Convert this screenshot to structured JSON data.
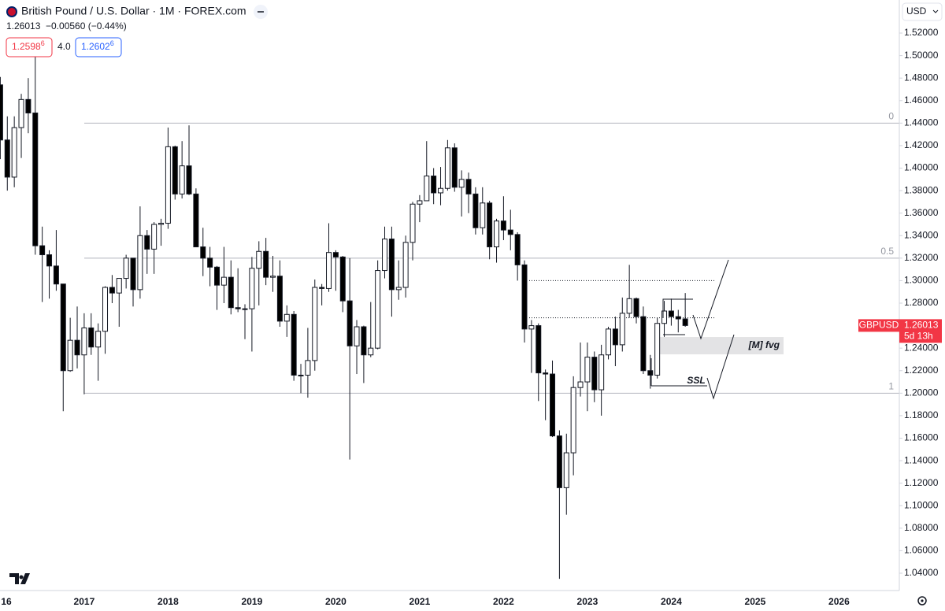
{
  "header": {
    "title": "British Pound / U.S. Dollar · 1M · FOREX.com",
    "quote": "1.26013",
    "change": "−0.00560 (−0.44%)",
    "bid": "1.2598",
    "bid_pip": "6",
    "spread": "4.0",
    "ask": "1.2602",
    "ask_pip": "6"
  },
  "currency": "USD",
  "chart_data": {
    "type": "candlestick",
    "categories": [
      "16",
      null,
      null,
      null,
      null,
      null,
      null,
      null,
      null,
      null,
      null,
      null,
      "2017",
      null,
      null,
      null,
      null,
      null,
      null,
      null,
      null,
      null,
      null,
      null,
      "2018",
      null,
      null,
      null,
      null,
      null,
      null,
      null,
      null,
      null,
      null,
      null,
      "2019",
      null,
      null,
      null,
      null,
      null,
      null,
      null,
      null,
      null,
      null,
      null,
      "2020",
      null,
      null,
      null,
      null,
      null,
      null,
      null,
      null,
      null,
      null,
      null,
      "2021",
      null,
      null,
      null,
      null,
      null,
      null,
      null,
      null,
      null,
      null,
      null,
      "2022",
      null,
      null,
      null,
      null,
      null,
      null,
      null,
      null,
      null,
      null,
      null,
      "2023",
      null,
      null,
      null,
      null,
      null,
      null,
      null,
      null,
      null,
      null,
      null,
      "2024",
      null,
      null,
      null,
      null,
      null,
      null,
      null,
      null,
      null,
      null,
      null,
      "2025",
      null,
      null,
      null,
      null,
      null,
      null,
      null,
      null,
      null,
      null,
      null,
      "2026",
      null,
      null,
      null,
      null,
      null,
      null,
      null,
      null
    ],
    "open": [
      1.474,
      1.425,
      1.392,
      1.436,
      1.461,
      1.449,
      1.331,
      1.323,
      1.313,
      1.297,
      1.22,
      1.247,
      1.234,
      1.258,
      1.241,
      1.255,
      1.294,
      1.289,
      1.302,
      1.32,
      1.292,
      1.34,
      1.328,
      1.35,
      1.351,
      1.419,
      1.377,
      1.402,
      1.377,
      1.33,
      1.32,
      1.312,
      1.296,
      1.303,
      1.276,
      1.275,
      1.275,
      1.311,
      1.326,
      1.303,
      1.304,
      1.264,
      1.27,
      1.216,
      1.216,
      1.229,
      1.294,
      1.293,
      1.325,
      1.321,
      1.282,
      1.242,
      1.259,
      1.234,
      1.24,
      1.309,
      1.337,
      1.292,
      1.294,
      1.334,
      1.368,
      1.371,
      1.393,
      1.378,
      1.382,
      1.418,
      1.383,
      1.39,
      1.377,
      1.347,
      1.369,
      1.33,
      1.353,
      1.345,
      1.341,
      1.314,
      1.257,
      1.26,
      1.218,
      1.217,
      1.162,
      1.116,
      1.147,
      1.205,
      1.21,
      1.232,
      1.203,
      1.234,
      1.257,
      1.243,
      1.271,
      1.284,
      1.268,
      1.22,
      1.216,
      1.262,
      1.273,
      1.268,
      1.266,
      null,
      null,
      null,
      null,
      null,
      null,
      null,
      null,
      null,
      null,
      null,
      null,
      null,
      null,
      null,
      null,
      null,
      null,
      null,
      null,
      null,
      null,
      null,
      null,
      null,
      null,
      null,
      null,
      null,
      null
    ],
    "high": [
      1.481,
      1.446,
      1.446,
      1.466,
      1.48,
      1.502,
      1.348,
      1.327,
      1.345,
      1.297,
      1.267,
      1.277,
      1.271,
      1.271,
      1.262,
      1.295,
      1.305,
      1.301,
      1.323,
      1.32,
      1.366,
      1.345,
      1.352,
      1.355,
      1.436,
      1.42,
      1.424,
      1.438,
      1.382,
      1.347,
      1.33,
      1.313,
      1.33,
      1.318,
      1.311,
      1.279,
      1.321,
      1.335,
      1.338,
      1.322,
      1.318,
      1.278,
      1.273,
      1.226,
      1.258,
      1.301,
      1.297,
      1.351,
      1.327,
      1.322,
      1.32,
      1.265,
      1.26,
      1.281,
      1.318,
      1.348,
      1.348,
      1.318,
      1.34,
      1.37,
      1.376,
      1.424,
      1.4,
      1.401,
      1.425,
      1.422,
      1.398,
      1.396,
      1.383,
      1.383,
      1.371,
      1.355,
      1.375,
      1.363,
      1.343,
      1.318,
      1.265,
      1.262,
      1.221,
      1.229,
      1.167,
      1.164,
      1.215,
      1.245,
      1.245,
      1.237,
      1.243,
      1.259,
      1.268,
      1.285,
      1.314,
      1.285,
      1.277,
      1.234,
      1.267,
      1.282,
      1.284,
      1.274,
      1.289,
      null,
      null,
      null,
      null,
      null,
      null,
      null,
      null,
      null,
      null,
      null,
      null,
      null,
      null,
      null,
      null,
      null,
      null,
      null,
      null,
      null,
      null,
      null,
      null,
      null,
      null,
      null,
      null,
      null,
      null
    ],
    "low": [
      1.408,
      1.38,
      1.383,
      1.409,
      1.431,
      1.323,
      1.281,
      1.284,
      1.291,
      1.184,
      1.219,
      1.222,
      1.199,
      1.234,
      1.211,
      1.235,
      1.28,
      1.259,
      1.293,
      1.277,
      1.284,
      1.306,
      1.306,
      1.331,
      1.346,
      1.372,
      1.373,
      1.376,
      1.33,
      1.304,
      1.295,
      1.274,
      1.28,
      1.27,
      1.272,
      1.248,
      1.237,
      1.278,
      1.296,
      1.29,
      1.259,
      1.25,
      1.211,
      1.2,
      1.196,
      1.22,
      1.278,
      1.29,
      1.291,
      1.272,
      1.141,
      1.217,
      1.209,
      1.232,
      1.239,
      1.302,
      1.268,
      1.283,
      1.285,
      1.318,
      1.352,
      1.371,
      1.368,
      1.367,
      1.38,
      1.379,
      1.357,
      1.36,
      1.341,
      1.341,
      1.319,
      1.316,
      1.336,
      1.327,
      1.3,
      1.245,
      1.218,
      1.193,
      1.176,
      1.161,
      1.035,
      1.092,
      1.127,
      1.197,
      1.184,
      1.192,
      1.18,
      1.23,
      1.224,
      1.237,
      1.267,
      1.262,
      1.217,
      1.204,
      1.213,
      1.25,
      1.26,
      1.254,
      1.259,
      null,
      null,
      null,
      null,
      null,
      null,
      null,
      null,
      null,
      null,
      null,
      null,
      null,
      null,
      null,
      null,
      null,
      null,
      null,
      null,
      null,
      null,
      null,
      null,
      null,
      null,
      null,
      null,
      null,
      null
    ],
    "close": [
      1.425,
      1.392,
      1.436,
      1.461,
      1.449,
      1.331,
      1.323,
      1.313,
      1.297,
      1.22,
      1.247,
      1.234,
      1.258,
      1.241,
      1.255,
      1.294,
      1.289,
      1.302,
      1.32,
      1.292,
      1.34,
      1.328,
      1.35,
      1.351,
      1.419,
      1.377,
      1.402,
      1.377,
      1.33,
      1.32,
      1.312,
      1.296,
      1.303,
      1.276,
      1.275,
      1.275,
      1.311,
      1.326,
      1.303,
      1.304,
      1.264,
      1.27,
      1.216,
      1.216,
      1.229,
      1.294,
      1.293,
      1.325,
      1.321,
      1.282,
      1.242,
      1.259,
      1.234,
      1.24,
      1.309,
      1.337,
      1.292,
      1.294,
      1.334,
      1.368,
      1.371,
      1.393,
      1.378,
      1.382,
      1.418,
      1.383,
      1.39,
      1.377,
      1.347,
      1.369,
      1.33,
      1.353,
      1.345,
      1.341,
      1.314,
      1.257,
      1.26,
      1.218,
      1.217,
      1.162,
      1.116,
      1.147,
      1.205,
      1.21,
      1.232,
      1.203,
      1.234,
      1.257,
      1.243,
      1.271,
      1.284,
      1.268,
      1.22,
      1.216,
      1.262,
      1.273,
      1.268,
      1.266,
      1.26013,
      null,
      null,
      null,
      null,
      null,
      null,
      null,
      null,
      null,
      null,
      null,
      null,
      null,
      null,
      null,
      null,
      null,
      null,
      null,
      null,
      null,
      null,
      null,
      null,
      null,
      null,
      null,
      null,
      null,
      null
    ],
    "up_color": "#ffffff",
    "down_color": "#000000",
    "ylim": [
      1.0246,
      1.5494
    ],
    "yticks": [
      {
        "value": 1.04,
        "label": "1.04000"
      },
      {
        "value": 1.06,
        "label": "1.06000"
      },
      {
        "value": 1.08,
        "label": "1.08000"
      },
      {
        "value": 1.1,
        "label": "1.10000"
      },
      {
        "value": 1.12,
        "label": "1.12000"
      },
      {
        "value": 1.14,
        "label": "1.14000"
      },
      {
        "value": 1.16,
        "label": "1.16000"
      },
      {
        "value": 1.18,
        "label": "1.18000"
      },
      {
        "value": 1.2,
        "label": "1.20000"
      },
      {
        "value": 1.22,
        "label": "1.22000"
      },
      {
        "value": 1.24,
        "label": "1.24000"
      },
      {
        "value": 1.26,
        "label": "1.26000"
      },
      {
        "value": 1.28,
        "label": "1.28000"
      },
      {
        "value": 1.3,
        "label": "1.30000"
      },
      {
        "value": 1.32,
        "label": "1.32000"
      },
      {
        "value": 1.34,
        "label": "1.34000"
      },
      {
        "value": 1.36,
        "label": "1.36000"
      },
      {
        "value": 1.38,
        "label": "1.38000"
      },
      {
        "value": 1.4,
        "label": "1.40000"
      },
      {
        "value": 1.42,
        "label": "1.42000"
      },
      {
        "value": 1.44,
        "label": "1.44000"
      },
      {
        "value": 1.46,
        "label": "1.46000"
      },
      {
        "value": 1.48,
        "label": "1.48000"
      },
      {
        "value": 1.5,
        "label": "1.50000"
      },
      {
        "value": 1.52,
        "label": "1.52000"
      }
    ],
    "levels": [
      {
        "value": 1.44,
        "label": "0"
      },
      {
        "value": 1.32,
        "label": "0.5"
      },
      {
        "value": 1.2,
        "label": "1"
      }
    ],
    "dotted_levels": [
      1.3,
      1.267
    ],
    "fvg": {
      "label": "[M] fvg",
      "low": 1.2345,
      "high": 1.2499
    },
    "ssl": {
      "label": "SSL",
      "value": 1.2065
    },
    "last_price": {
      "symbol": "GBPUSD",
      "value": 1.26013,
      "countdown": "5d 13h"
    }
  }
}
